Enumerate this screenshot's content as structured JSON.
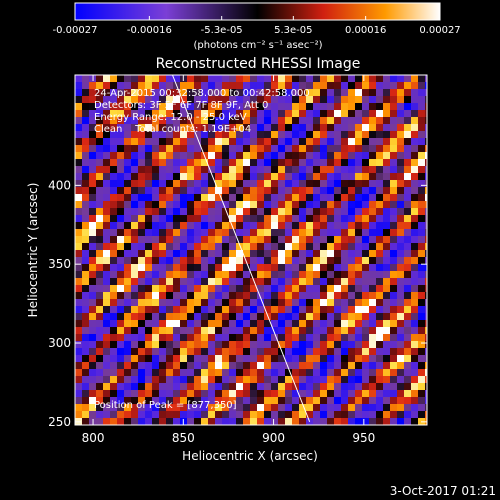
{
  "colorbar": {
    "tick_labels": [
      "-0.00027",
      "-0.00016",
      "-5.3e-05",
      "5.3e-05",
      "0.00016",
      "0.00027"
    ],
    "tick_values": [
      -0.00027,
      -0.00016,
      -5.3e-05,
      5.3e-05,
      0.00016,
      0.00027
    ],
    "range": [
      -0.00027,
      0.00027
    ],
    "units": "(photons cm⁻² s⁻¹ asec⁻²)",
    "colormap": "blue-purple-black-red-orange-yellow-white"
  },
  "chart_data": {
    "type": "heatmap",
    "title": "Reconstructed RHESSI Image",
    "xlabel": "Heliocentric X (arcsec)",
    "ylabel": "Heliocentric Y (arcsec)",
    "xlim": [
      790,
      985
    ],
    "ylim": [
      248,
      470
    ],
    "x_ticks": [
      800,
      850,
      900,
      950
    ],
    "y_ticks": [
      250,
      300,
      350,
      400
    ],
    "annotations": [
      "24-Apr-2015 00:32:58.000 to 00:42:58.000",
      "Detectors: 3F 5F 6F 7F 8F 9F, Att 0",
      "Energy Range: 12.0 - 25.0 keV",
      "Clean    Total counts: 1.19E+04"
    ],
    "peak_label": "Position of Peak = [877,350]",
    "peak_position": [
      877,
      350
    ],
    "limb_line": [
      [
        844,
        470
      ],
      [
        920,
        250
      ]
    ],
    "background": "diagonal stripe pattern",
    "grid": false
  },
  "footer": {
    "timestamp": "3-Oct-2017 01:21"
  },
  "colors": {
    "background": "#000000",
    "foreground": "#ffffff"
  }
}
